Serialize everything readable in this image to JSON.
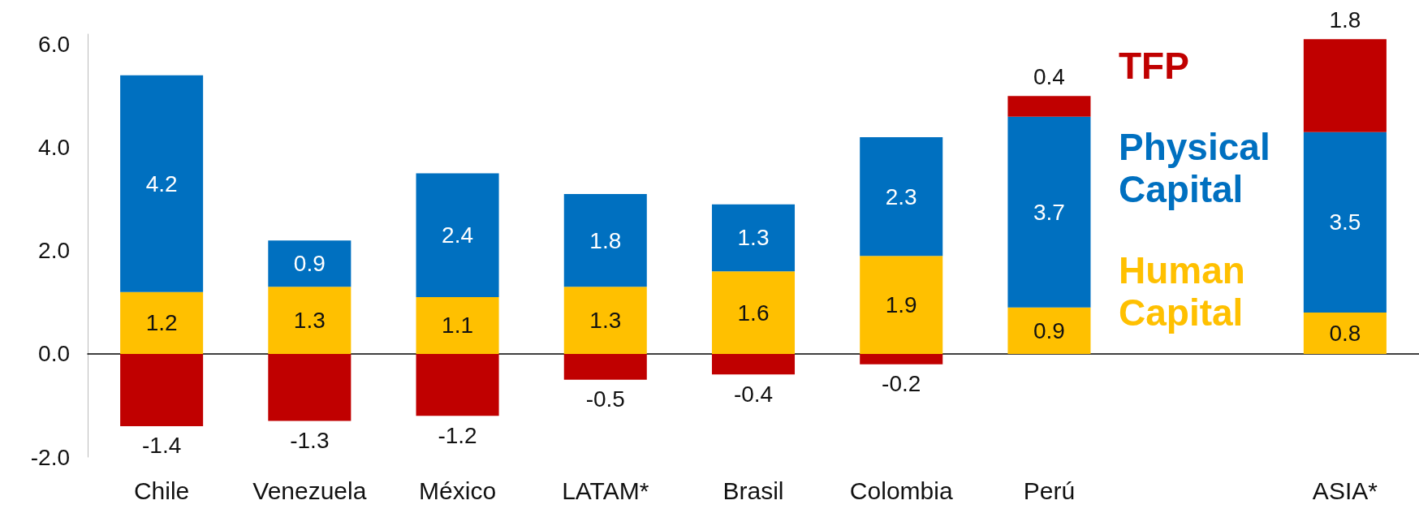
{
  "chart_data": {
    "type": "bar",
    "stacked": true,
    "categories": [
      "Chile",
      "Venezuela",
      "México",
      "LATAM*",
      "Brasil",
      "Colombia",
      "Perú",
      null,
      "ASIA*"
    ],
    "series": [
      {
        "name": "Human Capital",
        "color": "#ffc000",
        "values": [
          1.2,
          1.3,
          1.1,
          1.3,
          1.6,
          1.9,
          0.9,
          null,
          0.8
        ]
      },
      {
        "name": "Physical Capital",
        "color": "#0070c0",
        "values": [
          4.2,
          0.9,
          2.4,
          1.8,
          1.3,
          2.3,
          3.7,
          null,
          3.5
        ]
      },
      {
        "name": "TFP",
        "color": "#c00000",
        "values": [
          -1.4,
          -1.3,
          -1.2,
          -0.5,
          -0.4,
          -0.2,
          0.4,
          null,
          1.8
        ]
      }
    ],
    "ylim": [
      -2,
      6.2
    ],
    "yticks": [
      {
        "value": -2,
        "label": "-2.0"
      },
      {
        "value": 0,
        "label": "0.0"
      },
      {
        "value": 2,
        "label": "2.0"
      },
      {
        "value": 4,
        "label": "4.0"
      },
      {
        "value": 6,
        "label": "6.0"
      }
    ],
    "legend": "right",
    "data_labels": true
  }
}
